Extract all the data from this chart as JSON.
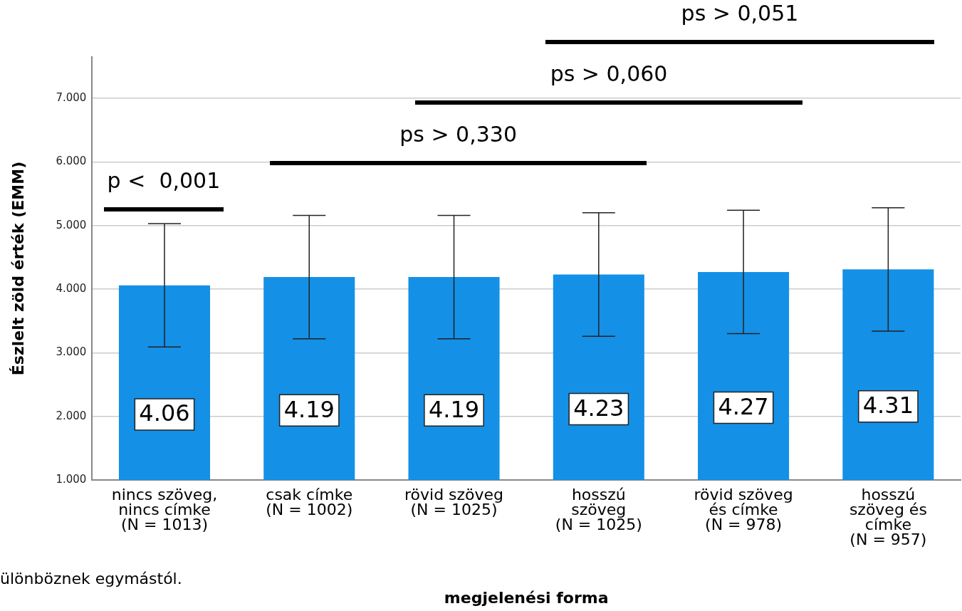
{
  "chart_data": {
    "type": "bar",
    "ylabel": "Észlelt zöld érték (EMM)",
    "xlabel": "megjelenési forma",
    "categories": [
      "nincs szöveg,\nnincs címke\n(N = 1013)",
      "csak címke\n(N = 1002)",
      "rövid szöveg\n(N = 1025)",
      "hosszú\nszöveg\n(N = 1025)",
      "rövid szöveg\nés címke\n(N = 978)",
      "hosszú\nszöveg és\ncímke\n(N = 957)"
    ],
    "values": [
      4.06,
      4.19,
      4.19,
      4.23,
      4.27,
      4.31
    ],
    "errors": [
      0.97,
      0.97,
      0.97,
      0.97,
      0.97,
      0.97
    ],
    "color": "#1490e6",
    "data_labels": true,
    "ylim": [
      1,
      7.65
    ],
    "yticks": [
      {
        "value": 1,
        "label": "1.000"
      },
      {
        "value": 2,
        "label": "2.000"
      },
      {
        "value": 3,
        "label": "3.000"
      },
      {
        "value": 4,
        "label": "4.000"
      },
      {
        "value": 5,
        "label": "5.000"
      },
      {
        "value": 6,
        "label": "6.000"
      },
      {
        "value": 7,
        "label": "7.000"
      }
    ],
    "grid": "y",
    "annotations": [
      "p <  0,001",
      "ps > 0,330",
      "ps > 0,060",
      "ps > 0,051",
      "ülönböznek egymástól."
    ]
  }
}
